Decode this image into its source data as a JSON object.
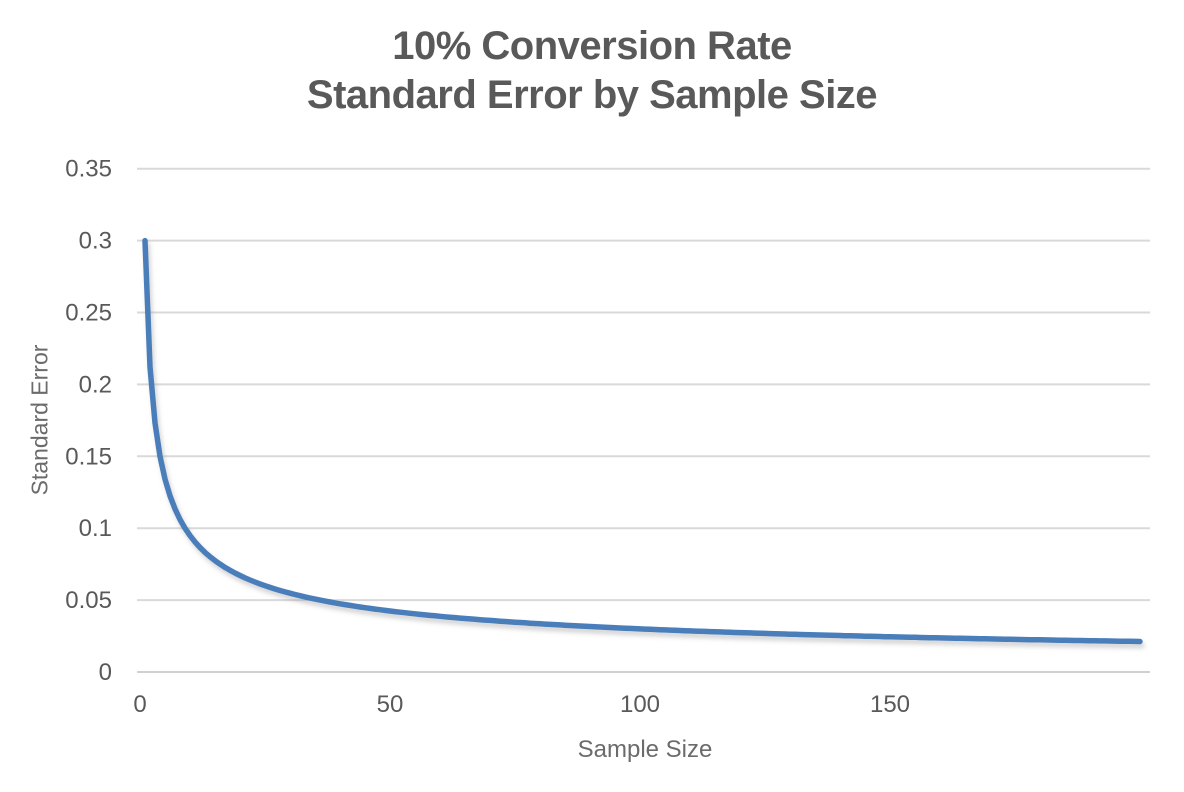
{
  "chart_data": {
    "type": "line",
    "title_lines": [
      "10% Conversion Rate",
      "Standard Error by Sample Size"
    ],
    "title": "10% Conversion Rate Standard Error by Sample Size",
    "xlabel": "Sample Size",
    "ylabel": "Standard Error",
    "xlim": [
      0,
      200
    ],
    "ylim": [
      0,
      0.35
    ],
    "x_ticks": [
      0,
      50,
      100,
      150
    ],
    "x_tick_labels": [
      "0",
      "50",
      "100",
      "150"
    ],
    "y_ticks": [
      0,
      0.05,
      0.1,
      0.15,
      0.2,
      0.25,
      0.3,
      0.35
    ],
    "y_tick_labels": [
      "0",
      "0.05",
      "0.1",
      "0.15",
      "0.2",
      "0.25",
      "0.3",
      "0.35"
    ],
    "grid": "horizontal-only",
    "legend": "none",
    "background": "#ffffff",
    "gridline_color": "#d9d9d9",
    "axis_line_color": "#d0d0d0",
    "text_color": "#595959",
    "series": [
      {
        "name": "Standard Error",
        "color": "#4a7ebb",
        "line_width": 5.5,
        "formula": "se(n) = sqrt(p*(1-p)/n)",
        "p": 0.1,
        "n_start": 1,
        "n_end": 200,
        "n_step": 1,
        "key_points": [
          {
            "n": 1,
            "se": 0.3
          },
          {
            "n": 2,
            "se": 0.2121
          },
          {
            "n": 4,
            "se": 0.15
          },
          {
            "n": 9,
            "se": 0.1
          },
          {
            "n": 16,
            "se": 0.075
          },
          {
            "n": 25,
            "se": 0.06
          },
          {
            "n": 36,
            "se": 0.05
          },
          {
            "n": 50,
            "se": 0.0424
          },
          {
            "n": 100,
            "se": 0.03
          },
          {
            "n": 150,
            "se": 0.0245
          },
          {
            "n": 200,
            "se": 0.0212
          }
        ]
      }
    ]
  }
}
